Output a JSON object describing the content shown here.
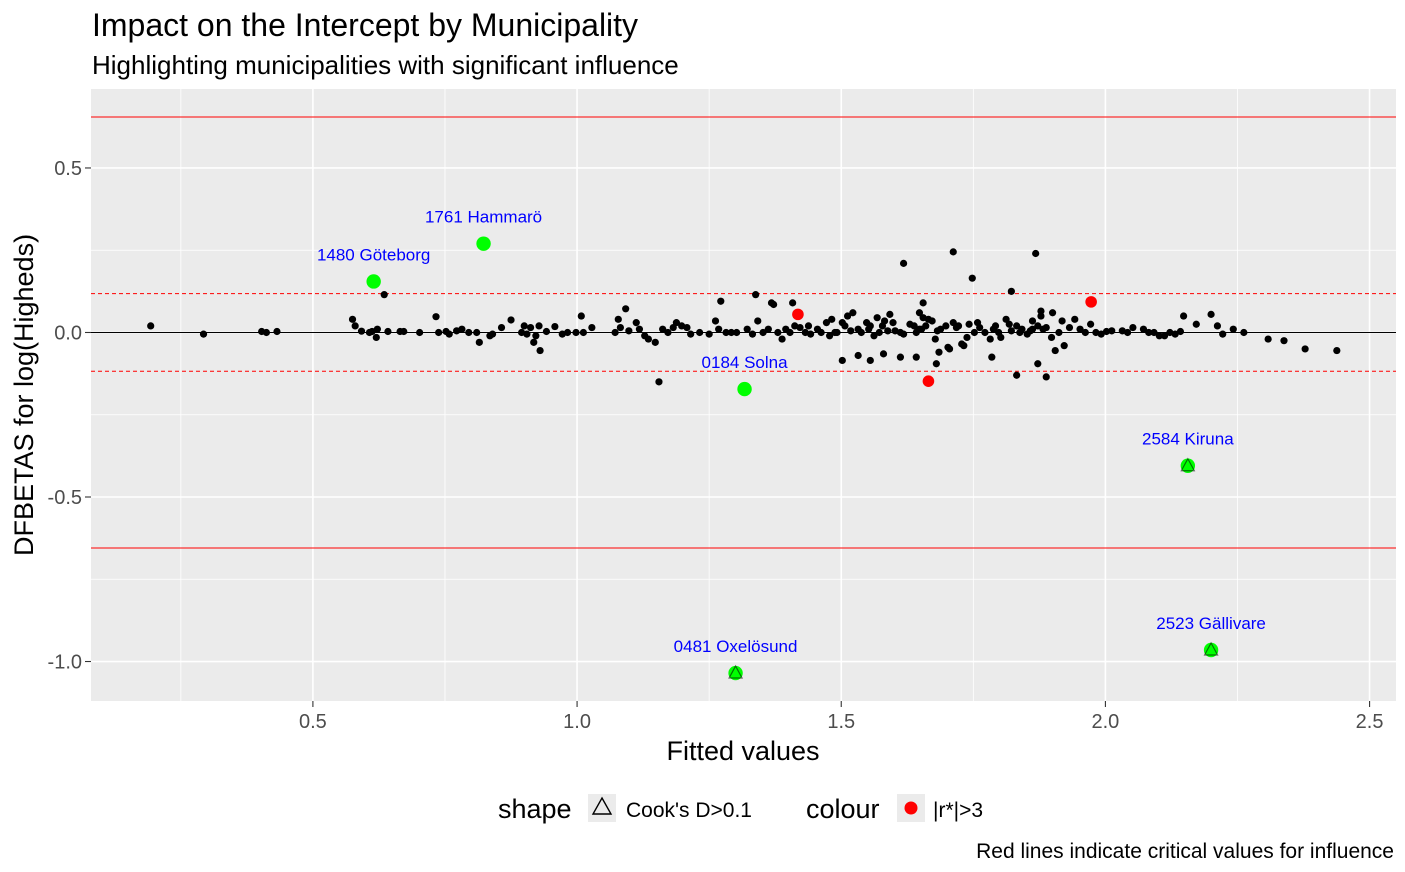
{
  "chart_data": {
    "type": "scatter",
    "title": "Impact on the Intercept by Municipality",
    "subtitle": "Highlighting municipalities with significant influence",
    "xlabel": "Fitted values",
    "ylabel": "DFBETAS for log(Higheds)",
    "caption": "Red lines indicate critical values for influence",
    "xlim": [
      0.08,
      2.55
    ],
    "ylim": [
      -1.12,
      0.74
    ],
    "x_ticks": [
      {
        "value": 0.5,
        "label": "0.5"
      },
      {
        "value": 1.0,
        "label": "1.0"
      },
      {
        "value": 1.5,
        "label": "1.5"
      },
      {
        "value": 2.0,
        "label": "2.0"
      },
      {
        "value": 2.5,
        "label": "2.5"
      }
    ],
    "y_ticks": [
      {
        "value": 0.5,
        "label": "0.5"
      },
      {
        "value": 0.0,
        "label": "0.0"
      },
      {
        "value": -0.5,
        "label": "-0.5"
      },
      {
        "value": -1.0,
        "label": "-1.0"
      }
    ],
    "grid": true,
    "background": "#ebebeb",
    "reference_lines": {
      "zero": {
        "y": 0.0,
        "color": "#000000"
      },
      "critical_solid": {
        "values": [
          0.655,
          -0.655
        ],
        "color": "#ff0000"
      },
      "critical_dashed": {
        "values": [
          0.118,
          -0.118
        ],
        "color": "#ff0000"
      }
    },
    "colors": {
      "normal": "#000000",
      "highlight": "#00ff00",
      "residual": "#ff0000",
      "label": "#0000ff"
    },
    "legend": {
      "position": "bottom",
      "shape_title": "shape",
      "shape_entry": "Cook's D>0.1",
      "colour_title": "colour",
      "colour_entry": "|r*|>3"
    },
    "highlighted_points": [
      {
        "label": "1761 Hammarö",
        "x": 0.823,
        "y": 0.27
      },
      {
        "label": "1480 Göteborg",
        "x": 0.615,
        "y": 0.155
      },
      {
        "label": "0184 Solna",
        "x": 1.317,
        "y": -0.172
      },
      {
        "label": "2584 Kiruna",
        "x": 2.156,
        "y": -0.405
      },
      {
        "label": "0481 Oxelösund",
        "x": 1.3,
        "y": -1.035
      },
      {
        "label": "2523 Gällivare",
        "x": 2.2,
        "y": -0.965
      }
    ],
    "residual_points": [
      {
        "x": 1.418,
        "y": 0.055
      },
      {
        "x": 1.665,
        "y": -0.148
      },
      {
        "x": 1.973,
        "y": 0.093
      }
    ],
    "points": [
      [
        0.193,
        0.02
      ],
      [
        0.293,
        -0.005
      ],
      [
        0.403,
        0.003
      ],
      [
        0.412,
        0.0
      ],
      [
        0.432,
        0.003
      ],
      [
        0.575,
        0.04
      ],
      [
        0.58,
        0.02
      ],
      [
        0.592,
        0.004
      ],
      [
        0.607,
        0.0
      ],
      [
        0.612,
        0.003
      ],
      [
        0.62,
        -0.015
      ],
      [
        0.622,
        0.01
      ],
      [
        0.635,
        0.115
      ],
      [
        0.642,
        0.003
      ],
      [
        0.665,
        0.003
      ],
      [
        0.672,
        0.003
      ],
      [
        0.702,
        0.0
      ],
      [
        0.733,
        0.048
      ],
      [
        0.738,
        0.0
      ],
      [
        0.752,
        0.003
      ],
      [
        0.758,
        -0.005
      ],
      [
        0.772,
        0.005
      ],
      [
        0.782,
        0.01
      ],
      [
        0.795,
        0.0
      ],
      [
        0.81,
        0.0
      ],
      [
        0.815,
        -0.03
      ],
      [
        0.835,
        -0.01
      ],
      [
        0.84,
        -0.005
      ],
      [
        0.857,
        0.015
      ],
      [
        0.875,
        0.038
      ],
      [
        0.895,
        0.0
      ],
      [
        0.9,
        0.02
      ],
      [
        0.905,
        -0.005
      ],
      [
        0.912,
        0.015
      ],
      [
        0.918,
        -0.03
      ],
      [
        0.922,
        -0.01
      ],
      [
        0.928,
        0.02
      ],
      [
        0.93,
        -0.055
      ],
      [
        0.942,
        0.003
      ],
      [
        0.958,
        0.018
      ],
      [
        0.972,
        -0.005
      ],
      [
        0.982,
        0.0
      ],
      [
        0.998,
        0.0
      ],
      [
        1.008,
        0.05
      ],
      [
        1.012,
        0.0
      ],
      [
        1.028,
        0.015
      ],
      [
        1.072,
        0.0
      ],
      [
        1.078,
        0.04
      ],
      [
        1.082,
        0.015
      ],
      [
        1.092,
        0.072
      ],
      [
        1.098,
        0.005
      ],
      [
        1.112,
        0.03
      ],
      [
        1.118,
        0.01
      ],
      [
        1.128,
        -0.01
      ],
      [
        1.135,
        -0.02
      ],
      [
        1.148,
        -0.03
      ],
      [
        1.155,
        -0.15
      ],
      [
        1.162,
        0.01
      ],
      [
        1.172,
        0.0
      ],
      [
        1.182,
        0.015
      ],
      [
        1.188,
        0.03
      ],
      [
        1.198,
        0.02
      ],
      [
        1.208,
        0.015
      ],
      [
        1.215,
        -0.005
      ],
      [
        1.232,
        0.0
      ],
      [
        1.25,
        -0.005
      ],
      [
        1.262,
        0.035
      ],
      [
        1.268,
        0.01
      ],
      [
        1.272,
        0.095
      ],
      [
        1.282,
        0.0
      ],
      [
        1.292,
        0.0
      ],
      [
        1.302,
        0.0
      ],
      [
        1.322,
        0.01
      ],
      [
        1.332,
        -0.005
      ],
      [
        1.338,
        0.115
      ],
      [
        1.342,
        0.035
      ],
      [
        1.352,
        0.0
      ],
      [
        1.362,
        0.01
      ],
      [
        1.368,
        0.09
      ],
      [
        1.372,
        0.085
      ],
      [
        1.38,
        0.0
      ],
      [
        1.388,
        -0.02
      ],
      [
        1.395,
        0.01
      ],
      [
        1.403,
        0.0
      ],
      [
        1.408,
        0.09
      ],
      [
        1.412,
        0.02
      ],
      [
        1.422,
        0.015
      ],
      [
        1.432,
        0.0
      ],
      [
        1.438,
        0.02
      ],
      [
        1.442,
        -0.005
      ],
      [
        1.455,
        0.01
      ],
      [
        1.462,
        0.0
      ],
      [
        1.472,
        0.03
      ],
      [
        1.478,
        -0.01
      ],
      [
        1.482,
        0.04
      ],
      [
        1.488,
        0.0
      ],
      [
        1.492,
        0.0
      ],
      [
        1.502,
        0.03
      ],
      [
        1.507,
        0.02
      ],
      [
        1.512,
        0.05
      ],
      [
        1.518,
        0.005
      ],
      [
        1.522,
        0.06
      ],
      [
        1.532,
        0.01
      ],
      [
        1.538,
        0.0
      ],
      [
        1.548,
        0.03
      ],
      [
        1.552,
        0.01
      ],
      [
        1.555,
        0.02
      ],
      [
        1.562,
        -0.01
      ],
      [
        1.568,
        0.045
      ],
      [
        1.572,
        0.0
      ],
      [
        1.578,
        0.02
      ],
      [
        1.582,
        0.035
      ],
      [
        1.588,
        0.005
      ],
      [
        1.592,
        0.055
      ],
      [
        1.598,
        0.03
      ],
      [
        1.602,
        0.005
      ],
      [
        1.612,
        0.0
      ],
      [
        1.618,
        -0.005
      ],
      [
        1.63,
        0.025
      ],
      [
        1.642,
        0.0
      ],
      [
        1.648,
        0.01
      ],
      [
        1.655,
        0.09
      ],
      [
        1.66,
        0.02
      ],
      [
        1.672,
        0.035
      ],
      [
        1.678,
        -0.02
      ],
      [
        1.682,
        0.005
      ],
      [
        1.688,
        0.01
      ],
      [
        1.698,
        0.02
      ],
      [
        1.705,
        -0.05
      ],
      [
        1.712,
        0.03
      ],
      [
        1.718,
        0.015
      ],
      [
        1.722,
        0.02
      ],
      [
        1.728,
        -0.035
      ],
      [
        1.738,
        -0.015
      ],
      [
        1.742,
        0.025
      ],
      [
        1.752,
        0.0
      ],
      [
        1.758,
        0.03
      ],
      [
        1.762,
        0.015
      ],
      [
        1.772,
        0.0
      ],
      [
        1.782,
        -0.02
      ],
      [
        1.788,
        0.01
      ],
      [
        1.792,
        0.02
      ],
      [
        1.798,
        0.0
      ],
      [
        1.802,
        -0.015
      ],
      [
        1.812,
        0.04
      ],
      [
        1.818,
        0.025
      ],
      [
        1.822,
        0.005
      ],
      [
        1.832,
        0.02
      ],
      [
        1.838,
        0.0
      ],
      [
        1.842,
        0.01
      ],
      [
        1.852,
        -0.005
      ],
      [
        1.858,
        0.005
      ],
      [
        1.862,
        0.035
      ],
      [
        1.872,
        0.02
      ],
      [
        1.878,
        0.065
      ],
      [
        1.882,
        0.01
      ],
      [
        1.888,
        0.015
      ],
      [
        1.898,
        -0.015
      ],
      [
        1.912,
        0.0
      ],
      [
        1.918,
        0.035
      ],
      [
        1.932,
        0.015
      ],
      [
        1.942,
        0.04
      ],
      [
        1.952,
        0.01
      ],
      [
        1.962,
        0.0
      ],
      [
        1.972,
        0.025
      ],
      [
        1.982,
        0.0
      ],
      [
        1.992,
        -0.005
      ],
      [
        2.002,
        0.003
      ],
      [
        2.012,
        0.005
      ],
      [
        2.032,
        0.005
      ],
      [
        2.042,
        0.0
      ],
      [
        2.052,
        0.015
      ],
      [
        2.072,
        0.01
      ],
      [
        2.082,
        0.0
      ],
      [
        2.092,
        0.0
      ],
      [
        2.102,
        -0.01
      ],
      [
        2.112,
        -0.01
      ],
      [
        2.122,
        0.0
      ],
      [
        2.132,
        -0.005
      ],
      [
        2.142,
        0.003
      ],
      [
        1.618,
        0.21
      ],
      [
        1.652,
        0.01
      ],
      [
        1.655,
        0.045
      ],
      [
        1.642,
        -0.075
      ],
      [
        1.612,
        -0.075
      ],
      [
        1.58,
        -0.065
      ],
      [
        1.555,
        -0.085
      ],
      [
        1.532,
        -0.07
      ],
      [
        1.502,
        -0.085
      ],
      [
        1.712,
        0.245
      ],
      [
        1.748,
        0.165
      ],
      [
        1.868,
        0.24
      ],
      [
        1.822,
        0.125
      ],
      [
        1.638,
        0.02
      ],
      [
        1.648,
        0.06
      ],
      [
        1.665,
        0.04
      ],
      [
        1.685,
        -0.06
      ],
      [
        1.702,
        -0.045
      ],
      [
        1.68,
        -0.095
      ],
      [
        1.732,
        -0.04
      ],
      [
        1.785,
        -0.075
      ],
      [
        1.832,
        -0.13
      ],
      [
        1.872,
        -0.095
      ],
      [
        1.888,
        -0.135
      ],
      [
        1.905,
        -0.055
      ],
      [
        1.922,
        -0.04
      ],
      [
        1.9,
        0.06
      ],
      [
        1.862,
        0.01
      ],
      [
        1.878,
        0.05
      ],
      [
        2.148,
        0.05
      ],
      [
        2.172,
        0.025
      ],
      [
        2.2,
        0.055
      ],
      [
        2.212,
        0.02
      ],
      [
        2.222,
        -0.005
      ],
      [
        2.242,
        0.01
      ],
      [
        2.262,
        0.0
      ],
      [
        2.308,
        -0.02
      ],
      [
        2.338,
        -0.025
      ],
      [
        2.378,
        -0.05
      ],
      [
        2.438,
        -0.055
      ]
    ]
  }
}
